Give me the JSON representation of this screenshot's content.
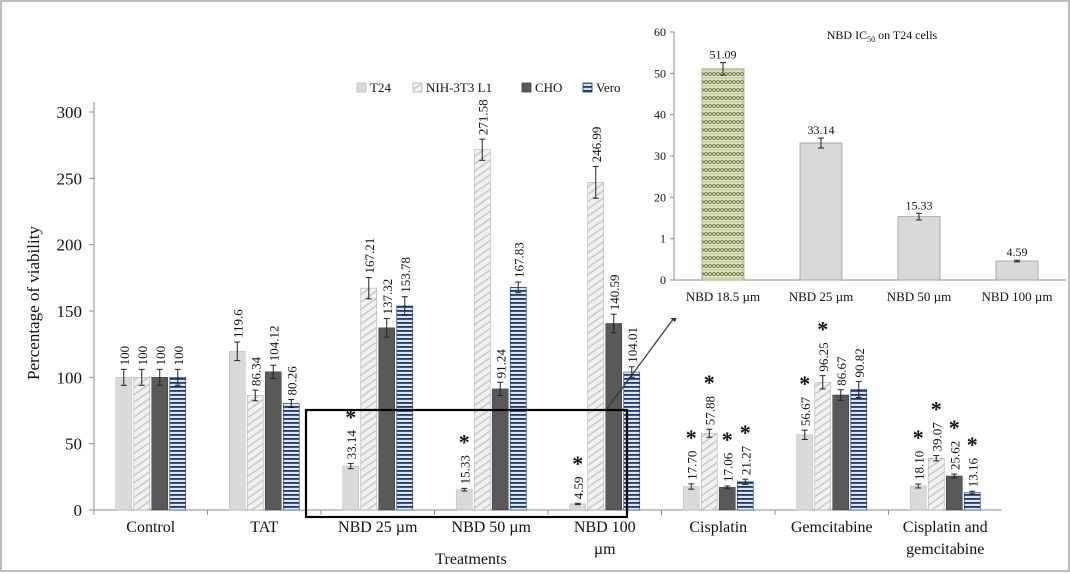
{
  "main_chart": {
    "type": "bar",
    "xlabel": "Treatments",
    "ylabel": "Percentage of viability",
    "ylim": [
      0,
      300
    ],
    "yticks": [
      0,
      50,
      100,
      150,
      200,
      250,
      300
    ],
    "categories": [
      {
        "lines": [
          "Control"
        ]
      },
      {
        "lines": [
          "TAT"
        ]
      },
      {
        "lines": [
          "NBD 25 µm"
        ]
      },
      {
        "lines": [
          "NBD 50 µm"
        ]
      },
      {
        "lines": [
          "NBD 100",
          "µm"
        ]
      },
      {
        "lines": [
          "Cisplatin"
        ]
      },
      {
        "lines": [
          "Gemcitabine"
        ]
      },
      {
        "lines": [
          "Cisplatin and",
          "gemcitabine"
        ]
      }
    ],
    "series": [
      {
        "name": "T24",
        "pattern": "t24",
        "values": [
          100,
          119.6,
          33.14,
          15.33,
          4.59,
          17.7,
          56.67,
          18.1
        ],
        "labels": [
          "100",
          "119.6",
          "33.14",
          "15.33",
          "4.59",
          "17.70",
          "56.67",
          "18.10"
        ],
        "errors": [
          6,
          7,
          2,
          1,
          0.5,
          2,
          3.5,
          1.5
        ],
        "significant": [
          false,
          false,
          true,
          true,
          true,
          true,
          true,
          true
        ]
      },
      {
        "name": "NIH-3T3 L1",
        "pattern": "nih",
        "values": [
          100,
          86.34,
          167.21,
          271.58,
          246.99,
          57.88,
          96.25,
          39.07
        ],
        "labels": [
          "100",
          "86.34",
          "167.21",
          "271.58",
          "246.99",
          "57.88",
          "96.25",
          "39.07"
        ],
        "errors": [
          6,
          4,
          8,
          8,
          12,
          3,
          5,
          2
        ],
        "significant": [
          false,
          false,
          false,
          false,
          false,
          true,
          true,
          true
        ]
      },
      {
        "name": "CHO",
        "pattern": "cho",
        "values": [
          100,
          104.12,
          137.32,
          91.24,
          140.59,
          17.06,
          86.67,
          25.62
        ],
        "labels": [
          "100",
          "104.12",
          "137.32",
          "91.24",
          "140.59",
          "17.06",
          "86.67",
          "25.62"
        ],
        "errors": [
          6,
          5,
          7,
          5,
          7,
          1,
          4,
          1.5
        ],
        "significant": [
          false,
          false,
          false,
          false,
          false,
          true,
          false,
          true
        ]
      },
      {
        "name": "Vero",
        "pattern": "vero",
        "values": [
          100,
          80.26,
          153.78,
          167.83,
          104.01,
          21.27,
          90.82,
          13.16
        ],
        "labels": [
          "100",
          "80.26",
          "153.78",
          "167.83",
          "104.01",
          "21.27",
          "90.82",
          "13.16"
        ],
        "errors": [
          6,
          3,
          7,
          4,
          4,
          2,
          6,
          1
        ],
        "significant": [
          false,
          false,
          false,
          false,
          false,
          true,
          false,
          true
        ]
      }
    ],
    "significance_marker": "*"
  },
  "inset_chart": {
    "type": "bar",
    "title_main": "NBD IC",
    "title_sub": "50",
    "title_rest": " on T24 cells",
    "ylim": [
      0,
      60
    ],
    "yticks": [
      0,
      1,
      20,
      30,
      40,
      50,
      60
    ],
    "categories": [
      "NBD 18.5 µm",
      "NBD 25 µm",
      "NBD 50 µm",
      "NBD 100 µm"
    ],
    "values": [
      51.09,
      33.14,
      15.33,
      4.59
    ],
    "labels": [
      "51.09",
      "33.14",
      "15.33",
      "4.59"
    ],
    "errors": [
      1.5,
      1.2,
      0.8,
      0.2
    ],
    "first_bar_pattern": "zigzag"
  },
  "colors": {
    "t24": "#d9d9d9",
    "nih_bg": "#f2f2f2",
    "nih_stripe": "#c8c8c8",
    "cho": "#595959",
    "vero_bg": "#dbe5f1",
    "vero_stripe": "#1f3864",
    "zigzag_bg": "#e6ead0",
    "zigzag_stroke": "#6b7a3a",
    "axis": "#8c8c8c"
  }
}
